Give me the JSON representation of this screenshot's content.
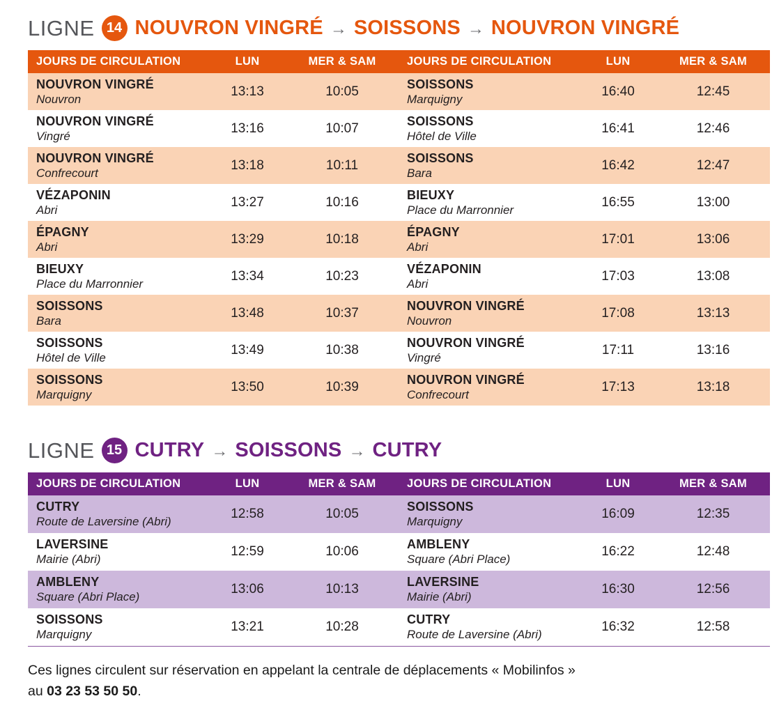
{
  "table_headers": [
    "JOURS DE CIRCULATION",
    "LUN",
    "MER & SAM"
  ],
  "lines": [
    {
      "ligne_label": "LIGNE",
      "number": "14",
      "arrow": "→",
      "route_parts": [
        "NOUVRON VINGRÉ",
        "SOISSONS",
        "NOUVRON VINGRÉ"
      ],
      "theme": {
        "accent": "#e5570e",
        "shade": "#fad3b5"
      },
      "rows": [
        {
          "left": {
            "stop": "NOUVRON VINGRÉ",
            "sub": "Nouvron",
            "lun": "13:13",
            "mer_sam": "10:05"
          },
          "right": {
            "stop": "SOISSONS",
            "sub": "Marquigny",
            "lun": "16:40",
            "mer_sam": "12:45"
          }
        },
        {
          "left": {
            "stop": "NOUVRON VINGRÉ",
            "sub": "Vingré",
            "lun": "13:16",
            "mer_sam": "10:07"
          },
          "right": {
            "stop": "SOISSONS",
            "sub": "Hôtel de Ville",
            "lun": "16:41",
            "mer_sam": "12:46"
          }
        },
        {
          "left": {
            "stop": "NOUVRON VINGRÉ",
            "sub": "Confrecourt",
            "lun": "13:18",
            "mer_sam": "10:11"
          },
          "right": {
            "stop": "SOISSONS",
            "sub": "Bara",
            "lun": "16:42",
            "mer_sam": "12:47"
          }
        },
        {
          "left": {
            "stop": "VÉZAPONIN",
            "sub": "Abri",
            "lun": "13:27",
            "mer_sam": "10:16"
          },
          "right": {
            "stop": "BIEUXY",
            "sub": "Place du Marronnier",
            "lun": "16:55",
            "mer_sam": "13:00"
          }
        },
        {
          "left": {
            "stop": "ÉPAGNY",
            "sub": "Abri",
            "lun": "13:29",
            "mer_sam": "10:18"
          },
          "right": {
            "stop": "ÉPAGNY",
            "sub": "Abri",
            "lun": "17:01",
            "mer_sam": "13:06"
          }
        },
        {
          "left": {
            "stop": "BIEUXY",
            "sub": "Place du Marronnier",
            "lun": "13:34",
            "mer_sam": "10:23"
          },
          "right": {
            "stop": "VÉZAPONIN",
            "sub": "Abri",
            "lun": "17:03",
            "mer_sam": "13:08"
          }
        },
        {
          "left": {
            "stop": "SOISSONS",
            "sub": "Bara",
            "lun": "13:48",
            "mer_sam": "10:37"
          },
          "right": {
            "stop": "NOUVRON VINGRÉ",
            "sub": "Nouvron",
            "lun": "17:08",
            "mer_sam": "13:13"
          }
        },
        {
          "left": {
            "stop": "SOISSONS",
            "sub": "Hôtel de Ville",
            "lun": "13:49",
            "mer_sam": "10:38"
          },
          "right": {
            "stop": "NOUVRON VINGRÉ",
            "sub": "Vingré",
            "lun": "17:11",
            "mer_sam": "13:16"
          }
        },
        {
          "left": {
            "stop": "SOISSONS",
            "sub": "Marquigny",
            "lun": "13:50",
            "mer_sam": "10:39"
          },
          "right": {
            "stop": "NOUVRON VINGRÉ",
            "sub": "Confrecourt",
            "lun": "17:13",
            "mer_sam": "13:18"
          }
        }
      ]
    },
    {
      "ligne_label": "LIGNE",
      "number": "15",
      "arrow": "→",
      "route_parts": [
        "CUTRY",
        "SOISSONS",
        "CUTRY"
      ],
      "theme": {
        "accent": "#6f2282",
        "shade": "#cdb8dc"
      },
      "rows": [
        {
          "left": {
            "stop": "CUTRY",
            "sub": "Route de Laversine (Abri)",
            "lun": "12:58",
            "mer_sam": "10:05"
          },
          "right": {
            "stop": "SOISSONS",
            "sub": "Marquigny",
            "lun": "16:09",
            "mer_sam": "12:35"
          }
        },
        {
          "left": {
            "stop": "LAVERSINE",
            "sub": "Mairie (Abri)",
            "lun": "12:59",
            "mer_sam": "10:06"
          },
          "right": {
            "stop": "AMBLENY",
            "sub": "Square (Abri Place)",
            "lun": "16:22",
            "mer_sam": "12:48"
          }
        },
        {
          "left": {
            "stop": "AMBLENY",
            "sub": "Square (Abri Place)",
            "lun": "13:06",
            "mer_sam": "10:13"
          },
          "right": {
            "stop": "LAVERSINE",
            "sub": "Mairie (Abri)",
            "lun": "16:30",
            "mer_sam": "12:56"
          }
        },
        {
          "left": {
            "stop": "SOISSONS",
            "sub": "Marquigny",
            "lun": "13:21",
            "mer_sam": "10:28"
          },
          "right": {
            "stop": "CUTRY",
            "sub": "Route de Laversine (Abri)",
            "lun": "16:32",
            "mer_sam": "12:58"
          }
        }
      ]
    }
  ],
  "footer": {
    "line1": "Ces lignes circulent sur réservation en appelant la centrale de déplacements « Mobilinfos »",
    "line2_prefix": "au ",
    "phone": "03 23 53 50 50",
    "suffix": "."
  }
}
